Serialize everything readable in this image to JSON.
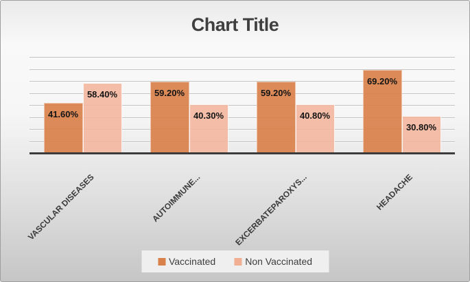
{
  "chart": {
    "title": "Chart Title"
  },
  "chart_data": {
    "type": "bar",
    "title": "Chart Title",
    "categories": [
      "VASCULAR DISEASES",
      "AUTOIMMUNE...",
      "EXCERBATEPAROXYS...",
      "HEADACHE"
    ],
    "series": [
      {
        "name": "Vaccinated",
        "color": "#d8814b",
        "fill": "rgba(216,129,75,0.93)",
        "values": [
          41.6,
          59.2,
          59.2,
          69.2
        ],
        "labels": [
          "41.60%",
          "59.20%",
          "59.20%",
          "69.20%"
        ]
      },
      {
        "name": "Non Vaccinated",
        "color": "#f2ae93",
        "fill": "rgba(244,181,157,0.88)",
        "values": [
          58.4,
          40.3,
          40.8,
          30.8
        ],
        "labels": [
          "58.40%",
          "40.30%",
          "40.80%",
          "30.80%"
        ]
      }
    ],
    "ylim": [
      0,
      80
    ],
    "gridline_step": 10,
    "grid": true,
    "legend_position": "bottom",
    "y_axis_labels_visible": false,
    "data_labels": "inside-end",
    "accent_dark": "#d8814b",
    "accent_light": "#f2ae93",
    "title_color": "#3f3f3f"
  }
}
